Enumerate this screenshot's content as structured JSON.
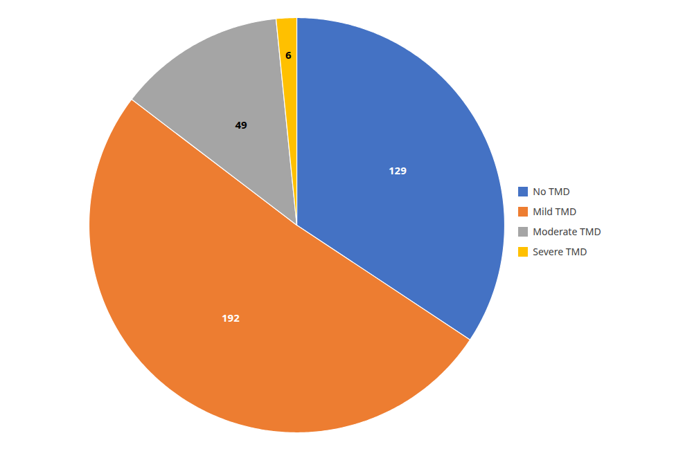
{
  "chart_data": {
    "type": "pie",
    "categories": [
      "No TMD",
      "Mild TMD",
      "Moderate TMD",
      "Severe TMD"
    ],
    "values": [
      129,
      192,
      49,
      6
    ],
    "colors": [
      "#4472C4",
      "#ED7D31",
      "#A5A5A5",
      "#FFC000"
    ],
    "data_labels": true,
    "legend": "right"
  }
}
